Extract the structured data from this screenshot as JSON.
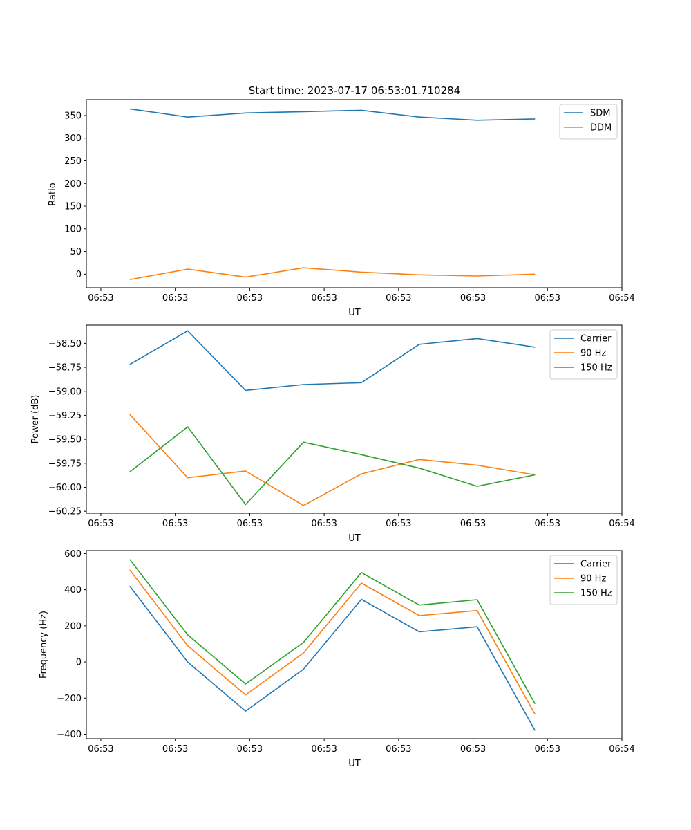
{
  "chart_data": [
    {
      "type": "line",
      "title": "Start time: 2023-07-17 06:53:01.710284",
      "xlabel": "UT",
      "ylabel": "Ratio",
      "x_tick_labels": [
        "06:53",
        "06:53",
        "06:53",
        "06:53",
        "06:53",
        "06:53",
        "06:53",
        "06:54"
      ],
      "xlim": [
        -0.75,
        8.5
      ],
      "ylim": [
        -30,
        385
      ],
      "y_ticks": [
        0,
        50,
        100,
        150,
        200,
        250,
        300,
        350
      ],
      "y_tick_labels": [
        "0",
        "50",
        "100",
        "150",
        "200",
        "250",
        "300",
        "350"
      ],
      "x": [
        0,
        1,
        2,
        3,
        4,
        5,
        6,
        7
      ],
      "legend_position": "top-right",
      "series": [
        {
          "name": "SDM",
          "color": "#1f77b4",
          "values": [
            364.5,
            346.5,
            355.5,
            358.5,
            361.5,
            346.5,
            339.5,
            342.5
          ]
        },
        {
          "name": "DDM",
          "color": "#ff7f0e",
          "values": [
            -12,
            11,
            -6.5,
            14,
            4.5,
            -1.5,
            -4,
            0
          ]
        }
      ]
    },
    {
      "type": "line",
      "title": "",
      "xlabel": "UT",
      "ylabel": "Power (dB)",
      "x_tick_labels": [
        "06:53",
        "06:53",
        "06:53",
        "06:53",
        "06:53",
        "06:53",
        "06:53",
        "06:54"
      ],
      "xlim": [
        -0.75,
        8.5
      ],
      "ylim": [
        -60.27,
        -58.31
      ],
      "y_ticks": [
        -60.25,
        -60.0,
        -59.75,
        -59.5,
        -59.25,
        -59.0,
        -58.75,
        -58.5
      ],
      "y_tick_labels": [
        "−60.25",
        "−60.00",
        "−59.75",
        "−59.50",
        "−59.25",
        "−59.00",
        "−58.75",
        "−58.50"
      ],
      "x": [
        0,
        1,
        2,
        3,
        4,
        5,
        6,
        7
      ],
      "legend_position": "top-right",
      "series": [
        {
          "name": "Carrier",
          "color": "#1f77b4",
          "values": [
            -58.72,
            -58.37,
            -58.99,
            -58.93,
            -58.91,
            -58.51,
            -58.45,
            -58.54
          ]
        },
        {
          "name": "90 Hz",
          "color": "#ff7f0e",
          "values": [
            -59.24,
            -59.9,
            -59.83,
            -60.19,
            -59.86,
            -59.71,
            -59.77,
            -59.87
          ]
        },
        {
          "name": "150 Hz",
          "color": "#2ca02c",
          "values": [
            -59.84,
            -59.37,
            -60.18,
            -59.53,
            -59.66,
            -59.8,
            -59.99,
            -59.87
          ]
        }
      ]
    },
    {
      "type": "line",
      "title": "",
      "xlabel": "UT",
      "ylabel": "Frequency (Hz)",
      "x_tick_labels": [
        "06:53",
        "06:53",
        "06:53",
        "06:53",
        "06:53",
        "06:53",
        "06:53",
        "06:54"
      ],
      "xlim": [
        -0.75,
        8.5
      ],
      "ylim": [
        -425,
        617
      ],
      "y_ticks": [
        -400,
        -200,
        0,
        200,
        400,
        600
      ],
      "y_tick_labels": [
        "−400",
        "−200",
        "0",
        "200",
        "400",
        "600"
      ],
      "x": [
        0,
        1,
        2,
        3,
        4,
        5,
        6,
        7
      ],
      "legend_position": "top-right",
      "series": [
        {
          "name": "Carrier",
          "color": "#1f77b4",
          "values": [
            420,
            0,
            -272,
            -40,
            347,
            167,
            195,
            -380
          ]
        },
        {
          "name": "90 Hz",
          "color": "#ff7f0e",
          "values": [
            510,
            90,
            -182,
            50,
            437,
            257,
            285,
            -290
          ]
        },
        {
          "name": "150 Hz",
          "color": "#2ca02c",
          "values": [
            568,
            150,
            -122,
            108,
            495,
            315,
            345,
            -232
          ]
        }
      ]
    }
  ]
}
